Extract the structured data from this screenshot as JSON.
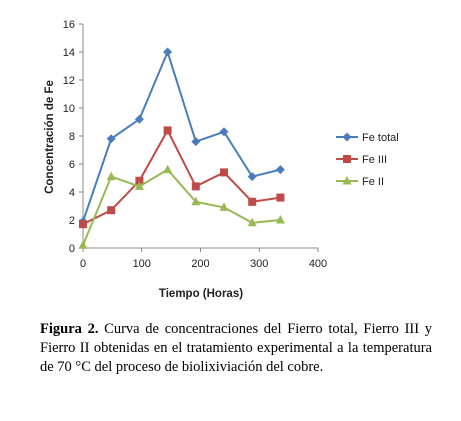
{
  "chart_data": {
    "type": "line",
    "title": "",
    "xlabel": "Tiempo (Horas)",
    "ylabel": "Concentración de Fe",
    "xlim": [
      0,
      400
    ],
    "ylim": [
      0,
      16
    ],
    "xticks": [
      "0",
      "100",
      "200",
      "300",
      "400"
    ],
    "yticks": [
      "0",
      "2",
      "4",
      "6",
      "8",
      "10",
      "12",
      "14",
      "16"
    ],
    "grid": false,
    "legend_position": "right",
    "series": [
      {
        "name": "Fe total",
        "color": "#4a7ebb",
        "marker": "diamond",
        "points": [
          [
            0,
            1.9
          ],
          [
            48,
            7.8
          ],
          [
            96,
            9.2
          ],
          [
            144,
            14.0
          ],
          [
            192,
            7.6
          ],
          [
            240,
            8.3
          ],
          [
            288,
            5.1
          ],
          [
            336,
            5.6
          ]
        ]
      },
      {
        "name": "Fe III",
        "color": "#be4b48",
        "marker": "square",
        "points": [
          [
            0,
            1.7
          ],
          [
            48,
            2.7
          ],
          [
            96,
            4.8
          ],
          [
            144,
            8.4
          ],
          [
            192,
            4.4
          ],
          [
            240,
            5.4
          ],
          [
            288,
            3.3
          ],
          [
            336,
            3.6
          ]
        ]
      },
      {
        "name": "Fe II",
        "color": "#98b954",
        "marker": "triangle",
        "points": [
          [
            0,
            0.2
          ],
          [
            48,
            5.1
          ],
          [
            96,
            4.4
          ],
          [
            144,
            5.6
          ],
          [
            192,
            3.3
          ],
          [
            240,
            2.9
          ],
          [
            288,
            1.8
          ],
          [
            336,
            2.0
          ]
        ]
      }
    ]
  },
  "caption": {
    "label": "Figura 2.",
    "text": " Curva de concentraciones del Fierro total, Fierro III y Fierro II obtenidas en el tratamiento experimental a la temperatura de 70 °C del proceso de biolixiviación del cobre."
  }
}
